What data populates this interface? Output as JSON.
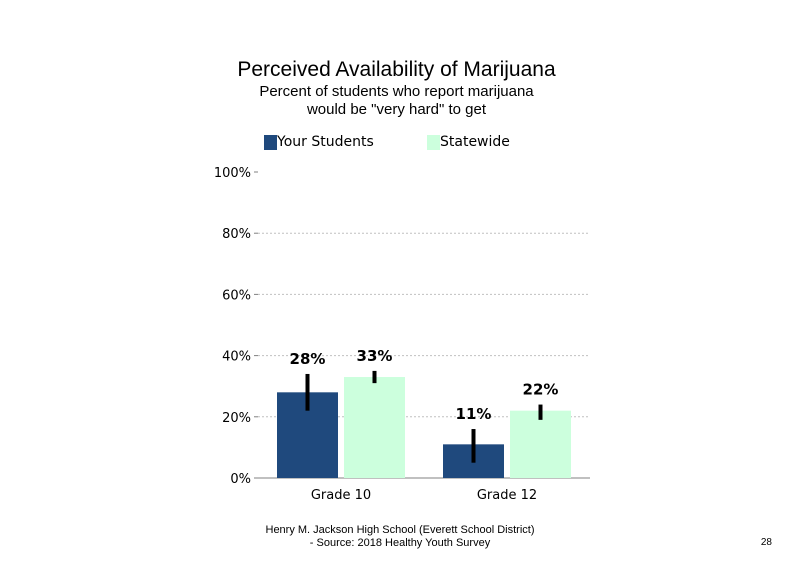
{
  "title": "Perceived Availability of Marijuana",
  "subtitle_line1": "Percent of students who report marijuana",
  "subtitle_line2": "would be \"very hard\" to get",
  "footer_line1": "Henry M. Jackson High School (Everett School District)",
  "footer_line2": "- Source: 2018 Healthy Youth Survey",
  "page_number": "28",
  "colors": {
    "your_students": "#1f497d",
    "statewide": "#ccffdd",
    "error_bar": "#000000",
    "gridline": "#c0c0c0",
    "axis": "#808080"
  },
  "chart_data": {
    "type": "bar",
    "categories": [
      "Grade 10",
      "Grade 12"
    ],
    "series": [
      {
        "name": "Your Students",
        "values": [
          28,
          11
        ],
        "labels": [
          "28%",
          "11%"
        ],
        "error": [
          [
            22,
            34
          ],
          [
            5,
            16
          ]
        ]
      },
      {
        "name": "Statewide",
        "values": [
          33,
          22
        ],
        "labels": [
          "33%",
          "22%"
        ],
        "error": [
          [
            31,
            35
          ],
          [
            19,
            24
          ]
        ]
      }
    ],
    "ylim": [
      0,
      100
    ],
    "y_ticks": [
      0,
      20,
      40,
      60,
      80,
      100
    ],
    "y_tick_labels": [
      "0%",
      "20%",
      "40%",
      "60%",
      "80%",
      "100%"
    ],
    "grid": true,
    "legend_position": "top"
  }
}
